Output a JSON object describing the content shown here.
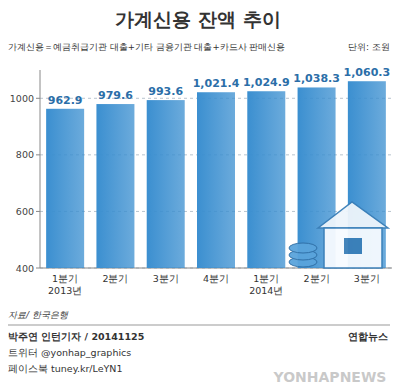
{
  "chart_data": {
    "type": "bar",
    "title": "가계신용 잔액 추이",
    "subtitle": "가계신용＝예금취급기관 대출+기타 금융기관 대출+카드사 판매신용",
    "unit": "단위: 조원",
    "categories": [
      "1분기\n2013년",
      "2분기",
      "3분기",
      "4분기",
      "1분기\n2014년",
      "2분기",
      "3분기"
    ],
    "values": [
      962.9,
      979.6,
      993.6,
      1021.4,
      1024.9,
      1038.3,
      1060.3
    ],
    "value_labels": [
      "962.9",
      "979.6",
      "993.6",
      "1,021.4",
      "1,024.9",
      "1,038.3",
      "1,060.3"
    ],
    "color": "#3b8fd0",
    "ylim": [
      400,
      1100
    ],
    "yticks": [
      400,
      600,
      800,
      1000
    ],
    "grid": true,
    "data_labels": true,
    "source": "자료/ 한국은행",
    "credits": [
      "박주연 인턴기자 / 20141125",
      "트위터 @yonhap_graphics",
      "페이스북 tuney.kr/LeYN1"
    ],
    "logo": "연합뉴스",
    "watermark": "YONHAPNEWS"
  }
}
